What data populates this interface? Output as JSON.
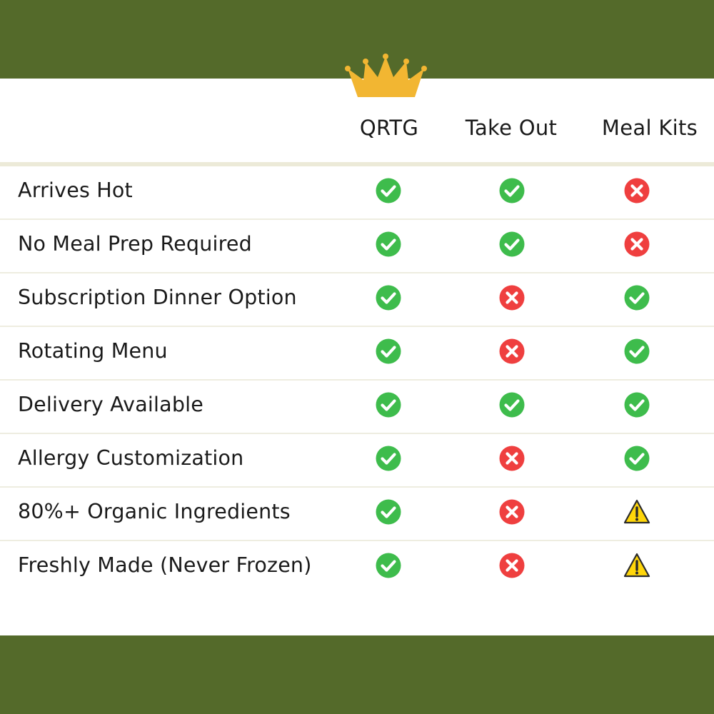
{
  "colors": {
    "band": "#546a2a",
    "divider": "#eeede0",
    "header_line": "#ecead8",
    "crown": "#f2b632",
    "check": "#3ebc4c",
    "cross": "#ef3f3f",
    "warning_fill": "#ffd60a",
    "warning_stroke": "#2b2b2b"
  },
  "header": {
    "crown_icon": "crown-icon",
    "columns": [
      "QRTG",
      "Take Out",
      "Meal Kits"
    ]
  },
  "rows": [
    {
      "feature": "Arrives Hot",
      "status": [
        "check",
        "check",
        "cross"
      ]
    },
    {
      "feature": "No Meal Prep Required",
      "status": [
        "check",
        "check",
        "cross"
      ]
    },
    {
      "feature": "Subscription Dinner Option",
      "status": [
        "check",
        "cross",
        "check"
      ]
    },
    {
      "feature": "Rotating Menu",
      "status": [
        "check",
        "cross",
        "check"
      ]
    },
    {
      "feature": "Delivery Available",
      "status": [
        "check",
        "check",
        "check"
      ]
    },
    {
      "feature": "Allergy Customization",
      "status": [
        "check",
        "cross",
        "check"
      ]
    },
    {
      "feature": "80%+ Organic Ingredients",
      "status": [
        "check",
        "cross",
        "warning"
      ]
    },
    {
      "feature": "Freshly Made (Never Frozen)",
      "status": [
        "check",
        "cross",
        "warning"
      ]
    }
  ]
}
